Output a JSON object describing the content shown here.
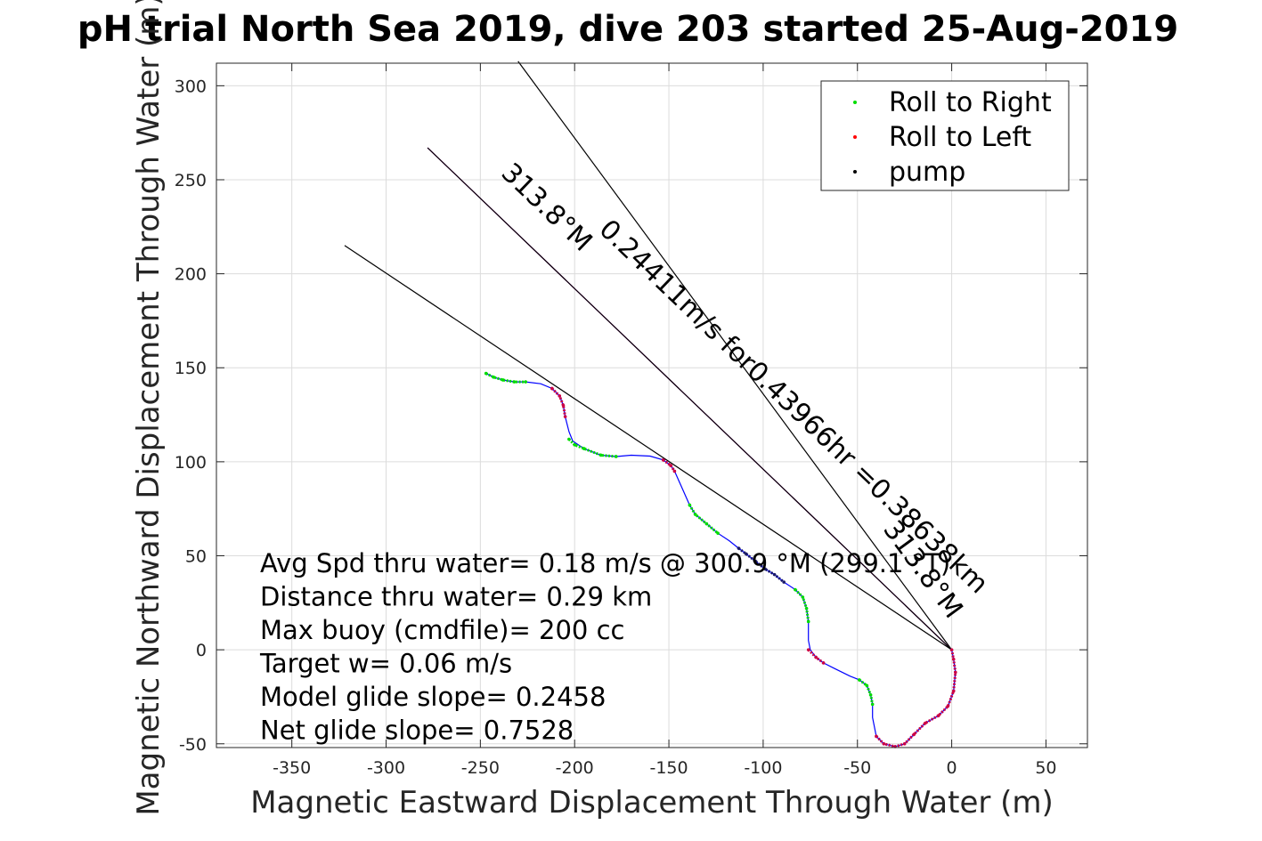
{
  "chart_data": {
    "type": "line",
    "title": "pH trial North Sea 2019, dive 203 started 25-Aug-2019",
    "xlabel": "Magnetic Eastward Displacement Through Water (m)",
    "ylabel": "Magnetic Northward Displacement Through Water (m)",
    "xlim": [
      -390,
      72
    ],
    "ylim": [
      -52,
      312
    ],
    "xticks": [
      -350,
      -300,
      -250,
      -200,
      -150,
      -100,
      -50,
      0,
      50
    ],
    "yticks": [
      -50,
      0,
      50,
      100,
      150,
      200,
      250,
      300
    ],
    "xtick_labels": [
      "-350",
      "-300",
      "-250",
      "-200",
      "-150",
      "-100",
      "-50",
      "0",
      "50"
    ],
    "ytick_labels": [
      "-50",
      "0",
      "50",
      "100",
      "150",
      "200",
      "250",
      "300"
    ],
    "grid": true,
    "legend_position": "top-right",
    "legend": [
      {
        "label": "Roll to Right",
        "color": "#00dd00"
      },
      {
        "label": "Roll to Left",
        "color": "#ff0000"
      },
      {
        "label": "pump",
        "color": "#000000"
      }
    ],
    "track": {
      "color": "#0000ff",
      "points": [
        [
          -247,
          147
        ],
        [
          -243,
          145
        ],
        [
          -238,
          143.5
        ],
        [
          -232,
          142.5
        ],
        [
          -226,
          142.5
        ],
        [
          -218,
          141.5
        ],
        [
          -212,
          139
        ],
        [
          -208,
          135
        ],
        [
          -206,
          130
        ],
        [
          -205,
          124
        ],
        [
          -203,
          116
        ],
        [
          -201,
          111
        ],
        [
          -195,
          107
        ],
        [
          -186,
          103.5
        ],
        [
          -178,
          102.8
        ],
        [
          -170,
          103.5
        ],
        [
          -160,
          103
        ],
        [
          -153,
          101
        ],
        [
          -149,
          98
        ],
        [
          -147,
          95
        ],
        [
          -143,
          86
        ],
        [
          -139,
          77
        ],
        [
          -136,
          72
        ],
        [
          -130,
          67
        ],
        [
          -124,
          62
        ],
        [
          -118,
          58
        ],
        [
          -113,
          54
        ],
        [
          -109,
          51
        ],
        [
          -104,
          47
        ],
        [
          -99,
          43
        ],
        [
          -94,
          40
        ],
        [
          -89,
          36
        ],
        [
          -83,
          32
        ],
        [
          -79,
          28
        ],
        [
          -77,
          22
        ],
        [
          -76,
          15
        ],
        [
          -76,
          5
        ],
        [
          -75,
          0
        ],
        [
          -72,
          -4
        ],
        [
          -68,
          -7
        ],
        [
          -62,
          -10
        ],
        [
          -54,
          -14
        ],
        [
          -49,
          -16
        ],
        [
          -45,
          -19
        ],
        [
          -43,
          -24
        ],
        [
          -42,
          -29
        ],
        [
          -42,
          -36
        ],
        [
          -40,
          -46
        ],
        [
          -36,
          -50
        ],
        [
          -30,
          -51.5
        ],
        [
          -25,
          -50
        ],
        [
          -20,
          -45
        ],
        [
          -14,
          -39
        ],
        [
          -7,
          -35
        ],
        [
          -2,
          -30
        ],
        [
          1,
          -22
        ],
        [
          2,
          -12
        ],
        [
          1,
          -5
        ],
        [
          0,
          0
        ]
      ]
    },
    "roll_right_segments": [
      [
        [
          -247,
          147
        ],
        [
          -243,
          145
        ],
        [
          -238,
          143.5
        ],
        [
          -232,
          142.5
        ],
        [
          -226,
          142.5
        ]
      ],
      [
        [
          -203,
          112
        ],
        [
          -200,
          109
        ],
        [
          -195,
          107
        ],
        [
          -186,
          103.5
        ],
        [
          -178,
          102.8
        ]
      ],
      [
        [
          -139,
          77
        ],
        [
          -136,
          72
        ],
        [
          -130,
          67
        ],
        [
          -124,
          62
        ]
      ],
      [
        [
          -83,
          32
        ],
        [
          -79,
          28
        ],
        [
          -77,
          22
        ],
        [
          -76,
          15
        ]
      ],
      [
        [
          -49,
          -16
        ],
        [
          -45,
          -19
        ],
        [
          -43,
          -24
        ],
        [
          -42,
          -29
        ]
      ]
    ],
    "roll_left_segments": [
      [
        [
          -212,
          139
        ],
        [
          -208,
          135
        ],
        [
          -206,
          130
        ],
        [
          -205,
          124
        ]
      ],
      [
        [
          -153,
          101
        ],
        [
          -149,
          98
        ],
        [
          -147,
          95
        ]
      ],
      [
        [
          -76,
          0
        ],
        [
          -72,
          -4
        ],
        [
          -68,
          -7
        ]
      ],
      [
        [
          -40,
          -46
        ],
        [
          -36,
          -50
        ],
        [
          -30,
          -51.5
        ],
        [
          -25,
          -50
        ],
        [
          -20,
          -45
        ],
        [
          -14,
          -39
        ],
        [
          -7,
          -35
        ],
        [
          -2,
          -30
        ],
        [
          1,
          -22
        ],
        [
          2,
          -12
        ],
        [
          1,
          -5
        ],
        [
          0,
          0
        ]
      ]
    ],
    "pump_segments": [
      [
        [
          -113,
          54
        ],
        [
          -109,
          51
        ],
        [
          -104,
          47
        ],
        [
          -99,
          43
        ],
        [
          -94,
          40
        ],
        [
          -89,
          36
        ]
      ]
    ],
    "reference_lines": [
      {
        "from": [
          0,
          0
        ],
        "to": [
          -230,
          313
        ],
        "color": "#000000"
      },
      {
        "from": [
          0,
          0
        ],
        "to": [
          -278,
          267
        ],
        "color": "#cc00cc"
      },
      {
        "from": [
          0,
          0
        ],
        "to": [
          -278,
          267
        ],
        "color": "#000000"
      },
      {
        "from": [
          0,
          0
        ],
        "to": [
          -322,
          215
        ],
        "color": "#000000"
      }
    ],
    "rotated_labels": [
      {
        "text": "313.8°M",
        "anchor": [
          -218,
          232
        ],
        "angle": 43.8
      },
      {
        "text": "0.24411m/s for0.43966hr =0.38638km",
        "anchor": [
          -87,
          126
        ],
        "angle": 43.8
      },
      {
        "text": "313.8°M",
        "anchor": [
          -19,
          40
        ],
        "angle": 53.7
      }
    ],
    "annotations": [
      "Avg Spd thru water=  0.18 m/s @ 300.9 °M (299.1 °T)",
      "Distance thru water=  0.29 km",
      "Max buoy (cmdfile)= 200 cc",
      "Target w= 0.06 m/s",
      "Model glide slope= 0.2458",
      "Net glide slope= 0.7528"
    ]
  }
}
